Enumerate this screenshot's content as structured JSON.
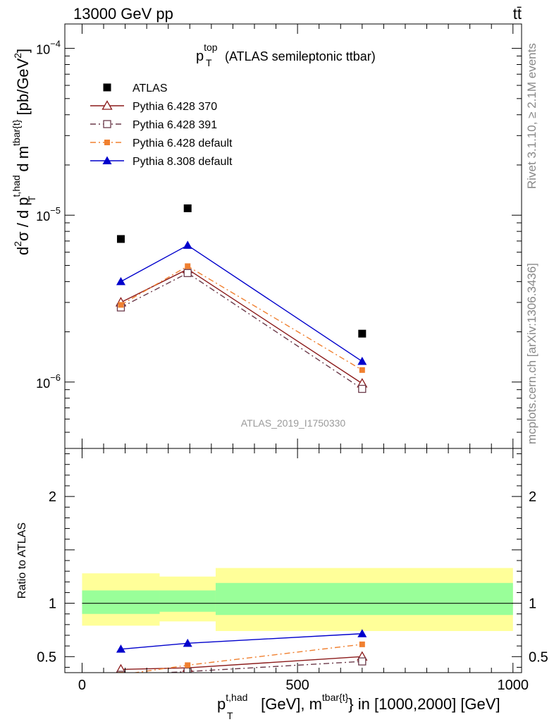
{
  "header": {
    "left": "13000 GeV pp",
    "right": "tt̄"
  },
  "side_notes": {
    "rivet": "Rivet 3.1.10, ≥ 2.1M events",
    "mcplots": "mcplots.cern.ch [arXiv:1306.3436]"
  },
  "watermark": "ATLAS_2019_I1750330",
  "colors": {
    "atlas": "#000000",
    "p370": "#8b1a1a",
    "p391": "#6b3a4a",
    "p6default": "#f08030",
    "p8default": "#0000cc",
    "band_outer": "#ffff99",
    "band_inner": "#99ff99"
  },
  "chart_data": [
    {
      "type": "scatter",
      "panel": "main",
      "title": {
        "main": "p",
        "sup": "top",
        "sub": "T",
        "rest": " (ATLAS semileptonic ttbar)"
      },
      "ylabel": {
        "parts": [
          "d",
          "2",
          "σ / d p",
          "t,had",
          "T",
          " d m",
          "tbar{t}",
          " [pb/GeV",
          "2",
          "]"
        ]
      },
      "xlim": [
        -40,
        1020
      ],
      "ylim": [
        4e-07,
        0.00014
      ],
      "yscale": "log",
      "y_ticks": [
        {
          "value": 1e-06,
          "base": "10",
          "exp": "−6"
        },
        {
          "value": 1e-05,
          "base": "10",
          "exp": "−5"
        },
        {
          "value": 0.0001,
          "base": "10",
          "exp": "−4"
        }
      ],
      "legend_position": "top-left",
      "series": [
        {
          "name": "ATLAS",
          "marker": "square-filled",
          "line": "none",
          "color": "#000000",
          "x": [
            90,
            245,
            650
          ],
          "y": [
            7.2e-06,
            1.1e-05,
            1.95e-06
          ]
        },
        {
          "name": "Pythia 6.428 370",
          "marker": "triangle-open",
          "line": "solid",
          "color": "#8b1a1a",
          "x": [
            90,
            245,
            650
          ],
          "y": [
            3e-06,
            4.75e-06,
            9.8e-07
          ]
        },
        {
          "name": "Pythia 6.428 391",
          "marker": "square-open",
          "line": "dashdot",
          "color": "#6b3a4a",
          "x": [
            90,
            245,
            650
          ],
          "y": [
            2.8e-06,
            4.5e-06,
            9.1e-07
          ]
        },
        {
          "name": "Pythia 6.428 default",
          "marker": "square-filled-small",
          "line": "dashdot",
          "color": "#f08030",
          "x": [
            90,
            245,
            650
          ],
          "y": [
            2.9e-06,
            4.95e-06,
            1.18e-06
          ]
        },
        {
          "name": "Pythia 8.308 default",
          "marker": "triangle-filled",
          "line": "solid",
          "color": "#0000cc",
          "x": [
            90,
            245,
            650
          ],
          "y": [
            4e-06,
            6.6e-06,
            1.33e-06
          ]
        }
      ]
    },
    {
      "type": "line",
      "panel": "ratio",
      "ylabel": "Ratio to ATLAS",
      "xlabel": {
        "parts": [
          "p",
          "t,had",
          "T",
          " [GeV], m",
          "tbar{t}",
          "} in [1000,2000] [GeV]"
        ]
      },
      "xlim": [
        -40,
        1020
      ],
      "ylim": [
        0.35,
        2.45
      ],
      "y_ticks": [
        {
          "value": 0.5,
          "label": "0.5"
        },
        {
          "value": 1,
          "label": "1"
        },
        {
          "value": 2,
          "label": "2"
        }
      ],
      "x_ticks": [
        {
          "value": 0,
          "label": "0"
        },
        {
          "value": 500,
          "label": "500"
        },
        {
          "value": 1000,
          "label": "1000"
        }
      ],
      "reference_line": 1,
      "bands": [
        {
          "x_from": 0,
          "x_to": 180,
          "outer": [
            0.79,
            1.28
          ],
          "inner": [
            0.9,
            1.12
          ]
        },
        {
          "x_from": 180,
          "x_to": 310,
          "outer": [
            0.83,
            1.25
          ],
          "inner": [
            0.92,
            1.12
          ]
        },
        {
          "x_from": 310,
          "x_to": 1000,
          "outer": [
            0.74,
            1.33
          ],
          "inner": [
            0.89,
            1.19
          ]
        }
      ],
      "series": [
        {
          "name": "Pythia 6.428 370",
          "marker": "triangle-open",
          "line": "solid",
          "color": "#8b1a1a",
          "x": [
            90,
            245,
            650
          ],
          "y": [
            0.38,
            0.395,
            0.5
          ]
        },
        {
          "name": "Pythia 6.428 391",
          "marker": "square-open",
          "line": "dashdot",
          "color": "#6b3a4a",
          "x": [
            90,
            245,
            650
          ],
          "y": [
            0.33,
            0.36,
            0.455
          ]
        },
        {
          "name": "Pythia 6.428 default",
          "marker": "square-filled-small",
          "line": "dashdot",
          "color": "#f08030",
          "x": [
            90,
            245,
            650
          ],
          "y": [
            0.33,
            0.42,
            0.615
          ]
        },
        {
          "name": "Pythia 8.308 default",
          "marker": "triangle-filled",
          "line": "solid",
          "color": "#0000cc",
          "x": [
            90,
            245,
            650
          ],
          "y": [
            0.57,
            0.625,
            0.715
          ]
        }
      ]
    }
  ]
}
